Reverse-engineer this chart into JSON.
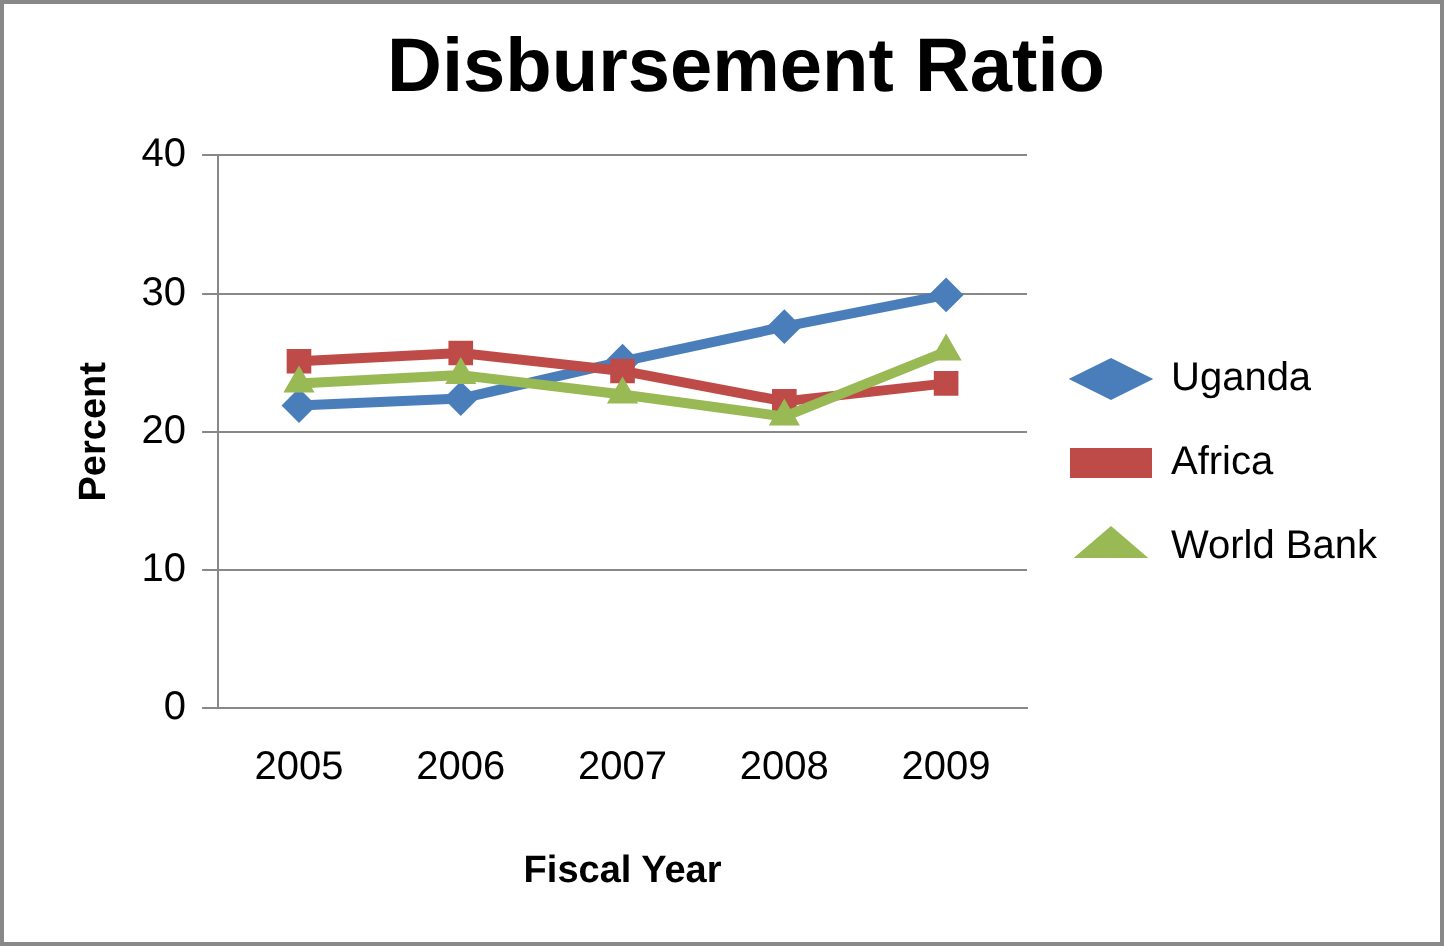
{
  "chart_data": {
    "type": "line",
    "title": "Disbursement Ratio",
    "xlabel": "Fiscal Year",
    "ylabel": "Percent",
    "categories": [
      "2005",
      "2006",
      "2007",
      "2008",
      "2009"
    ],
    "series": [
      {
        "name": "Uganda",
        "color": "#4a7ebb",
        "marker": "diamond",
        "values": [
          21.9,
          22.4,
          25.1,
          27.6,
          29.9
        ]
      },
      {
        "name": "Africa",
        "color": "#be4b48",
        "marker": "square",
        "values": [
          25.1,
          25.7,
          24.4,
          22.2,
          23.5
        ]
      },
      {
        "name": "World Bank",
        "color": "#98b954",
        "marker": "triangle",
        "values": [
          23.5,
          24.1,
          22.7,
          21.1,
          25.8
        ]
      }
    ],
    "ylim": [
      0,
      40
    ],
    "yticks": [
      0,
      10,
      20,
      30,
      40
    ],
    "grid": "y",
    "legend": "right"
  }
}
